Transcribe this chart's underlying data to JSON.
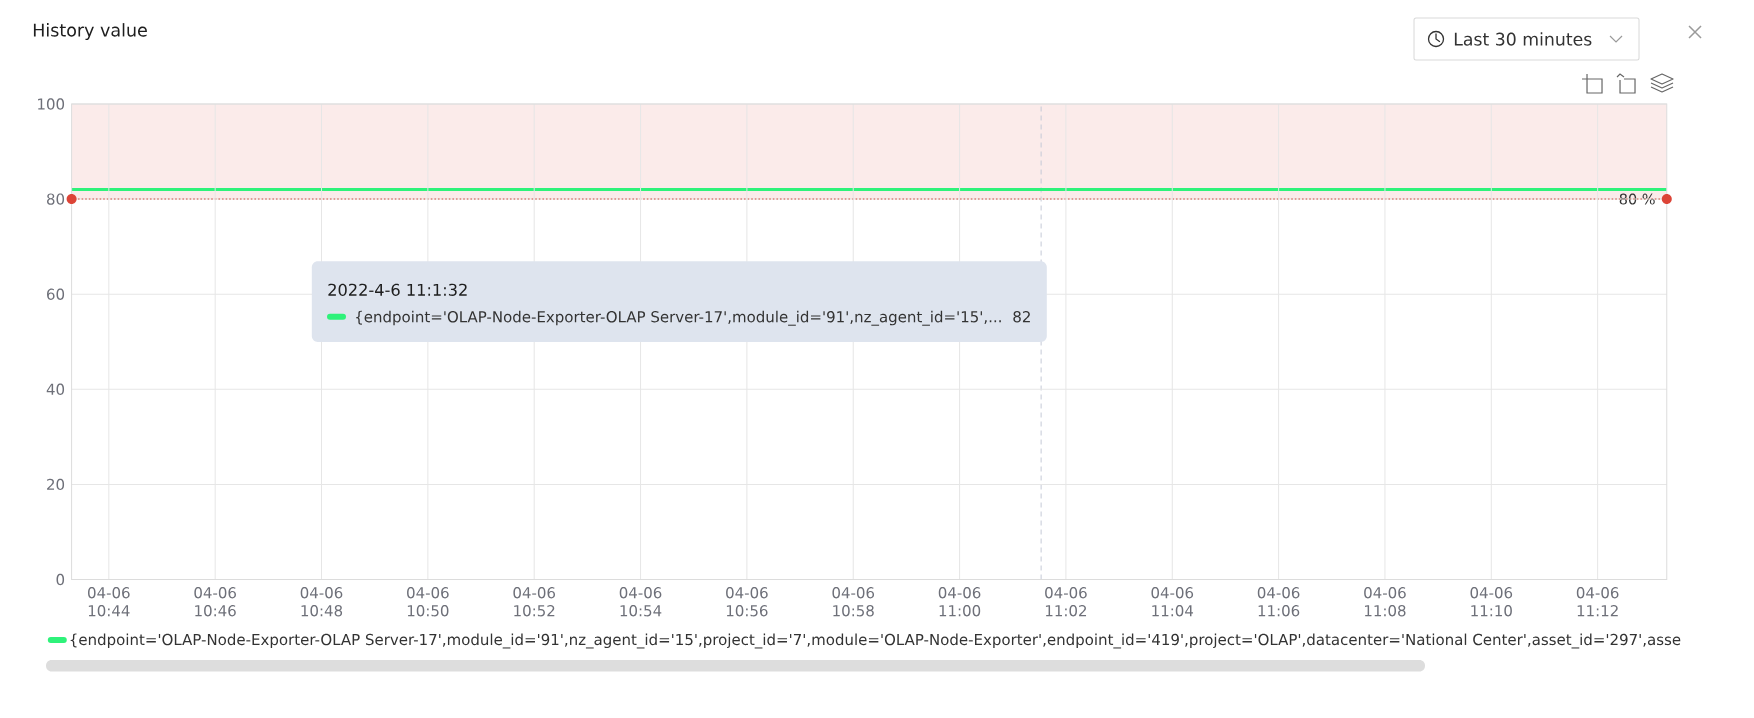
{
  "chart_data": {
    "type": "line",
    "title": "History value",
    "x": [
      "2022-04-06T10:43:18",
      "2022-04-06T11:01:32",
      "2022-04-06T11:13:18"
    ],
    "series": [
      {
        "name": "{endpoint='OLAP-Node-Exporter-OLAP Server-17',module_id='91',nz_agent_id='15',project_id='7',module='OLAP-Node-Exporter',endpoint_id='419',project='OLAP',datacenter='National Center',asset_id='297',asse",
        "color": "#2ef27a",
        "values": [
          82,
          82,
          82
        ]
      }
    ],
    "xlim": [
      "2022-04-06T10:43:18",
      "2022-04-06T11:13:18"
    ],
    "xticks": [
      {
        "value": "2022-04-06T10:44",
        "label": "04-06\n10:44"
      },
      {
        "value": "2022-04-06T10:46",
        "label": "04-06\n10:46"
      },
      {
        "value": "2022-04-06T10:48",
        "label": "04-06\n10:48"
      },
      {
        "value": "2022-04-06T10:50",
        "label": "04-06\n10:50"
      },
      {
        "value": "2022-04-06T10:52",
        "label": "04-06\n10:52"
      },
      {
        "value": "2022-04-06T10:54",
        "label": "04-06\n10:54"
      },
      {
        "value": "2022-04-06T10:56",
        "label": "04-06\n10:56"
      },
      {
        "value": "2022-04-06T10:58",
        "label": "04-06\n10:58"
      },
      {
        "value": "2022-04-06T11:00",
        "label": "04-06\n11:00"
      },
      {
        "value": "2022-04-06T11:02",
        "label": "04-06\n11:02"
      },
      {
        "value": "2022-04-06T11:04",
        "label": "04-06\n11:04"
      },
      {
        "value": "2022-04-06T11:06",
        "label": "04-06\n11:06"
      },
      {
        "value": "2022-04-06T11:08",
        "label": "04-06\n11:08"
      },
      {
        "value": "2022-04-06T11:10",
        "label": "04-06\n11:10"
      },
      {
        "value": "2022-04-06T11:12",
        "label": "04-06\n11:12"
      }
    ],
    "ylim": [
      0,
      100
    ],
    "yticks": [
      0,
      20,
      40,
      60,
      80,
      100
    ],
    "grid": true,
    "legend": "bottom",
    "marker": "none",
    "line_style": "solid",
    "ref_lines": [
      {
        "axis": "y",
        "value": 80,
        "label": "80 %",
        "color": "#dc4437",
        "line_style": "dotted"
      },
      {
        "axis": "x",
        "value": "2022-04-06T11:01:32",
        "color": "#c5c9d6",
        "line_style": "dashed"
      }
    ],
    "bands": [
      {
        "axis": "y",
        "from": 80,
        "to": 100,
        "color": "#fbebea"
      }
    ],
    "annotations": [
      "Last 30 minutes",
      "2022-4-6 11:1:32",
      "{endpoint='OLAP-Node-Exporter-OLAP Server-17',module_id='91',nz_agent_id='15',...",
      "82"
    ]
  }
}
